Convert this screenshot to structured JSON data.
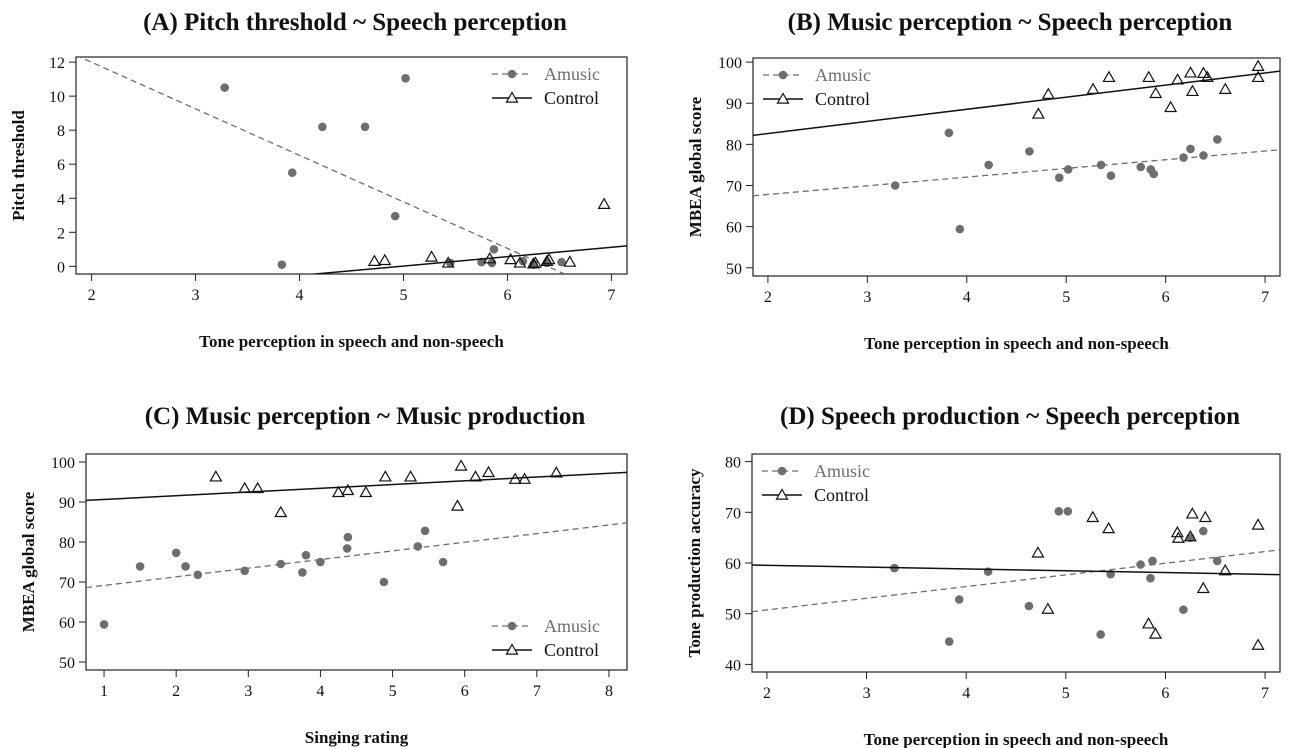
{
  "colors": {
    "amusic": "#6e6e6e",
    "control": "#111111",
    "frame": "#222222"
  },
  "chart_data": [
    {
      "type": "scatter",
      "title": "(A) Pitch threshold ~ Speech perception",
      "xlabel": "Tone perception in speech and non-speech",
      "ylabel": "Pitch threshold",
      "xlim": [
        1.85,
        7.15
      ],
      "ylim": [
        -0.45,
        12.3
      ],
      "xticks": [
        2,
        3,
        4,
        5,
        6,
        7
      ],
      "yticks": [
        0,
        2,
        4,
        6,
        8,
        10,
        12
      ],
      "legend_position": "top-right",
      "series": [
        {
          "name": "Amusic",
          "marker": "circle",
          "line": "dashed",
          "points": [
            [
              3.28,
              10.5
            ],
            [
              3.83,
              0.1
            ],
            [
              3.93,
              5.5
            ],
            [
              4.22,
              8.2
            ],
            [
              4.63,
              8.2
            ],
            [
              4.92,
              2.95
            ],
            [
              5.02,
              11.05
            ],
            [
              5.45,
              0.2
            ],
            [
              5.75,
              0.25
            ],
            [
              5.85,
              0.2
            ],
            [
              5.87,
              1.0
            ],
            [
              6.15,
              0.3
            ],
            [
              6.25,
              0.1
            ],
            [
              6.38,
              0.2
            ],
            [
              6.52,
              0.25
            ]
          ],
          "fit": [
            [
              1.85,
              12.4
            ],
            [
              6.55,
              -0.45
            ]
          ]
        },
        {
          "name": "Control",
          "marker": "triangle",
          "line": "solid",
          "points": [
            [
              4.72,
              0.3
            ],
            [
              4.82,
              0.35
            ],
            [
              5.27,
              0.55
            ],
            [
              5.43,
              0.2
            ],
            [
              5.83,
              0.45
            ],
            [
              6.03,
              0.4
            ],
            [
              6.12,
              0.2
            ],
            [
              6.25,
              0.15
            ],
            [
              6.27,
              0.2
            ],
            [
              6.38,
              0.3
            ],
            [
              6.4,
              0.4
            ],
            [
              6.6,
              0.25
            ],
            [
              6.93,
              3.65
            ]
          ],
          "fit": [
            [
              4.15,
              -0.45
            ],
            [
              7.15,
              1.2
            ]
          ]
        }
      ]
    },
    {
      "type": "scatter",
      "title": "(B) Music perception ~ Speech perception",
      "xlabel": "Tone perception in speech and non-speech",
      "ylabel": "MBEA global score",
      "xlim": [
        1.85,
        7.15
      ],
      "ylim": [
        48,
        101
      ],
      "xticks": [
        2,
        3,
        4,
        5,
        6,
        7
      ],
      "yticks": [
        50,
        60,
        70,
        80,
        90,
        100
      ],
      "legend_position": "top-left",
      "series": [
        {
          "name": "Amusic",
          "marker": "circle",
          "line": "dashed",
          "points": [
            [
              3.28,
              70
            ],
            [
              3.82,
              82.8
            ],
            [
              3.93,
              59.4
            ],
            [
              4.22,
              75
            ],
            [
              4.63,
              78.3
            ],
            [
              4.93,
              71.9
            ],
            [
              5.02,
              73.9
            ],
            [
              5.35,
              75
            ],
            [
              5.45,
              72.4
            ],
            [
              5.75,
              74.5
            ],
            [
              5.85,
              73.9
            ],
            [
              5.88,
              72.8
            ],
            [
              6.18,
              76.8
            ],
            [
              6.25,
              78.9
            ],
            [
              6.38,
              77.3
            ],
            [
              6.52,
              81.2
            ]
          ],
          "fit": [
            [
              1.85,
              67.5
            ],
            [
              7.15,
              78.7
            ]
          ]
        },
        {
          "name": "Control",
          "marker": "triangle",
          "line": "solid",
          "points": [
            [
              4.72,
              87.4
            ],
            [
              4.82,
              92.2
            ],
            [
              5.27,
              93.4
            ],
            [
              5.43,
              96.3
            ],
            [
              5.83,
              96.3
            ],
            [
              5.9,
              92.4
            ],
            [
              6.05,
              89
            ],
            [
              6.12,
              95.7
            ],
            [
              6.25,
              97.4
            ],
            [
              6.27,
              92.9
            ],
            [
              6.38,
              97.3
            ],
            [
              6.42,
              96.3
            ],
            [
              6.6,
              93.4
            ],
            [
              6.93,
              99
            ],
            [
              6.93,
              96.3
            ]
          ],
          "fit": [
            [
              1.85,
              82.2
            ],
            [
              7.15,
              97.8
            ]
          ]
        }
      ]
    },
    {
      "type": "scatter",
      "title": "(C) Music perception ~ Music production",
      "xlabel": "Singing rating",
      "ylabel": "MBEA global score",
      "xlim": [
        0.75,
        8.25
      ],
      "ylim": [
        48,
        102
      ],
      "xticks": [
        1,
        2,
        3,
        4,
        5,
        6,
        7,
        8
      ],
      "yticks": [
        50,
        60,
        70,
        80,
        90,
        100
      ],
      "legend_position": "bottom-right",
      "series": [
        {
          "name": "Amusic",
          "marker": "circle",
          "line": "dashed",
          "points": [
            [
              1,
              59.4
            ],
            [
              1.5,
              73.9
            ],
            [
              2,
              77.3
            ],
            [
              2.13,
              73.9
            ],
            [
              2.3,
              71.8
            ],
            [
              2.95,
              72.8
            ],
            [
              3.45,
              74.5
            ],
            [
              3.75,
              72.4
            ],
            [
              3.8,
              76.7
            ],
            [
              4,
              75
            ],
            [
              4.37,
              78.4
            ],
            [
              4.38,
              81.2
            ],
            [
              4.88,
              70
            ],
            [
              5.35,
              78.9
            ],
            [
              5.45,
              82.8
            ],
            [
              5.7,
              75
            ]
          ],
          "fit": [
            [
              0.75,
              68.6
            ],
            [
              8.25,
              84.8
            ]
          ]
        },
        {
          "name": "Control",
          "marker": "triangle",
          "line": "solid",
          "points": [
            [
              2.55,
              96.3
            ],
            [
              2.95,
              93.4
            ],
            [
              3.13,
              93.4
            ],
            [
              3.45,
              87.4
            ],
            [
              4.25,
              92.4
            ],
            [
              4.38,
              92.9
            ],
            [
              4.63,
              92.4
            ],
            [
              4.9,
              96.3
            ],
            [
              5.25,
              96.3
            ],
            [
              5.9,
              89
            ],
            [
              5.95,
              99
            ],
            [
              6.15,
              96.3
            ],
            [
              6.33,
              97.4
            ],
            [
              6.7,
              95.7
            ],
            [
              6.83,
              95.7
            ],
            [
              7.27,
              97.3
            ]
          ],
          "fit": [
            [
              0.75,
              90.4
            ],
            [
              8.25,
              97.4
            ]
          ]
        }
      ]
    },
    {
      "type": "scatter",
      "title": "(D) Speech production ~ Speech perception",
      "xlabel": "Tone perception in speech and non-speech",
      "ylabel": "Tone production accuracy",
      "xlim": [
        1.85,
        7.15
      ],
      "ylim": [
        38.5,
        81.5
      ],
      "xticks": [
        2,
        3,
        4,
        5,
        6,
        7
      ],
      "yticks": [
        40,
        50,
        60,
        70,
        80
      ],
      "legend_position": "top-left",
      "series": [
        {
          "name": "Amusic",
          "marker": "circle",
          "line": "dashed",
          "points": [
            [
              3.28,
              59
            ],
            [
              3.83,
              44.5
            ],
            [
              3.93,
              52.8
            ],
            [
              4.22,
              58.3
            ],
            [
              4.63,
              51.5
            ],
            [
              4.93,
              70.2
            ],
            [
              5.02,
              70.2
            ],
            [
              5.35,
              45.9
            ],
            [
              5.45,
              57.8
            ],
            [
              5.75,
              59.7
            ],
            [
              5.85,
              57
            ],
            [
              5.87,
              60.4
            ],
            [
              6.18,
              50.8
            ],
            [
              6.25,
              65
            ],
            [
              6.38,
              66.3
            ],
            [
              6.52,
              60.4
            ]
          ],
          "fit": [
            [
              1.85,
              50.4
            ],
            [
              7.15,
              62.6
            ]
          ]
        },
        {
          "name": "Control",
          "marker": "triangle",
          "line": "solid",
          "points": [
            [
              4.72,
              62
            ],
            [
              4.82,
              50.9
            ],
            [
              5.27,
              69
            ],
            [
              5.43,
              66.8
            ],
            [
              5.83,
              48
            ],
            [
              5.9,
              46
            ],
            [
              6.12,
              66
            ],
            [
              6.13,
              64.9
            ],
            [
              6.25,
              65.2
            ],
            [
              6.27,
              69.7
            ],
            [
              6.38,
              55
            ],
            [
              6.4,
              69
            ],
            [
              6.6,
              58.5
            ],
            [
              6.93,
              43.8
            ],
            [
              6.93,
              67.5
            ]
          ],
          "fit": [
            [
              1.85,
              59.6
            ],
            [
              7.15,
              57.7
            ]
          ]
        }
      ]
    }
  ]
}
